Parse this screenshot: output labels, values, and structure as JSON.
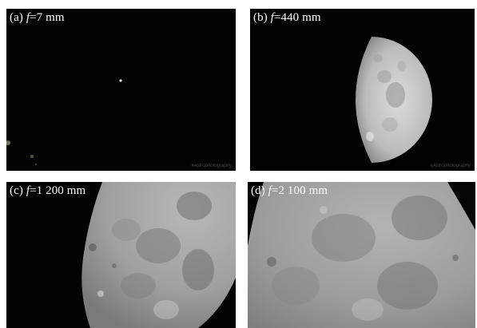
{
  "panels": [
    {
      "id": "a",
      "label_prefix": "(a) ",
      "label_var": "f",
      "label_value": "=7 mm",
      "watermark": "#Astrophotography"
    },
    {
      "id": "b",
      "label_prefix": "(b) ",
      "label_var": "f",
      "label_value": "=440 mm",
      "watermark": "#Astrophotography"
    },
    {
      "id": "c",
      "label_prefix": "(c) ",
      "label_var": "f",
      "label_value": "=1 200 mm",
      "watermark": ""
    },
    {
      "id": "d",
      "label_prefix": "(d) ",
      "label_var": "f",
      "label_value": "=2 100 mm",
      "watermark": ""
    }
  ]
}
